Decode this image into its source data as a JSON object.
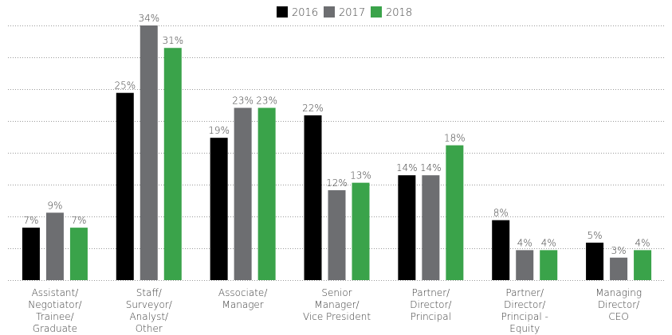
{
  "chart_data": {
    "type": "bar",
    "categories": [
      "Assistant/\nNegotiator/\nTrainee/\nGraduate",
      "Staff/\nSurveyor/\nAnalyst/\nOther",
      "Associate/\nManager",
      "Senior\nManager/\nVice President",
      "Partner/\nDirector/\nPrincipal",
      "Partner/\nDirector/\nPrincipal -\nEquity",
      "Managing\nDirector/\nCEO"
    ],
    "series": [
      {
        "name": "2016",
        "color": "#000000",
        "values": [
          7,
          25,
          19,
          22,
          14,
          8,
          5
        ],
        "value_labels": [
          "7%",
          "25%",
          "19%",
          "22%",
          "14%",
          "8%",
          "5%"
        ]
      },
      {
        "name": "2017",
        "color": "#6d6e71",
        "values": [
          9,
          34,
          23,
          12,
          14,
          4,
          3
        ],
        "value_labels": [
          "9%",
          "34%",
          "23%",
          "12%",
          "14%",
          "4%",
          "3%"
        ]
      },
      {
        "name": "2018",
        "color": "#3aa34a",
        "values": [
          7,
          31,
          23,
          13,
          18,
          4,
          4
        ],
        "value_labels": [
          "7%",
          "31%",
          "23%",
          "13%",
          "18%",
          "4%",
          "4%"
        ]
      }
    ],
    "ylim": [
      0,
      34
    ],
    "yticks": [
      0,
      4.25,
      8.5,
      12.75,
      17,
      21.25,
      25.5,
      29.75,
      34
    ],
    "grid": true,
    "legend": "top"
  }
}
